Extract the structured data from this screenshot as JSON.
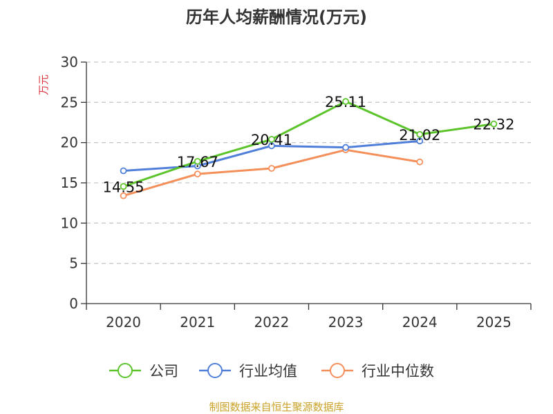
{
  "chart_data": {
    "type": "line",
    "title": "历年人均薪酬情况(万元)",
    "ylabel": "万元",
    "xlabel": "",
    "categories": [
      "2020",
      "2021",
      "2022",
      "2023",
      "2024",
      "2025"
    ],
    "ylim": [
      0,
      30
    ],
    "yticks": [
      "0",
      "5",
      "10",
      "15",
      "20",
      "25",
      "30"
    ],
    "grid": true,
    "legend_position": "bottom",
    "series": [
      {
        "name": "公司",
        "color": "#5cc42b",
        "values": [
          14.55,
          17.67,
          20.41,
          25.11,
          21.02,
          22.32
        ],
        "labels": [
          "14.55",
          "17.67",
          "20.41",
          "25.11",
          "21.02",
          "22.32"
        ]
      },
      {
        "name": "行业均值",
        "color": "#4f7fd9",
        "values": [
          16.5,
          17.1,
          19.6,
          19.4,
          20.2,
          null
        ]
      },
      {
        "name": "行业中位数",
        "color": "#f58f5a",
        "values": [
          13.4,
          16.1,
          16.8,
          19.1,
          17.6,
          null
        ]
      }
    ],
    "source": "制图数据来自恒生聚源数据库"
  }
}
